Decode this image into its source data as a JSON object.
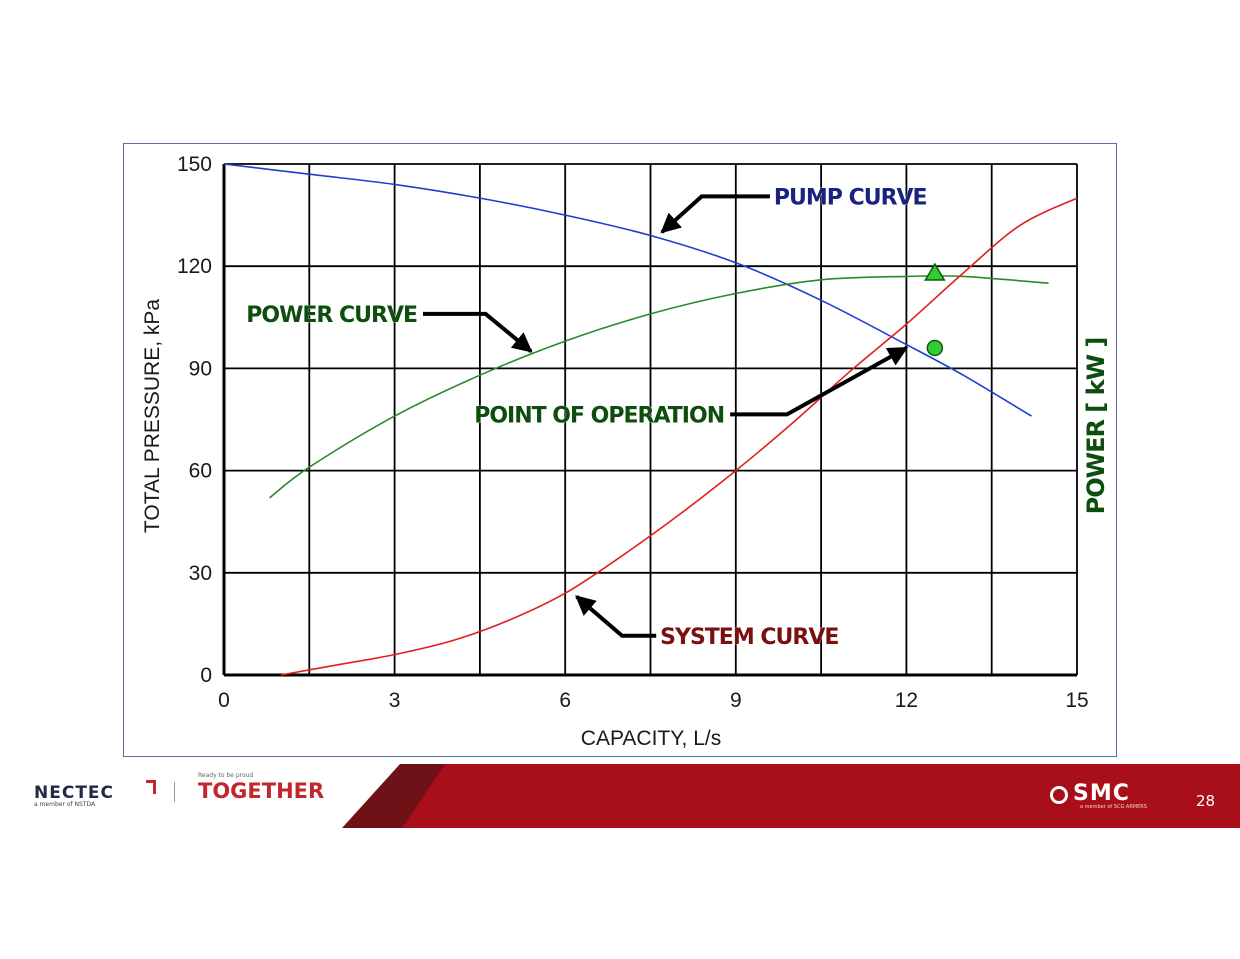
{
  "slide": {
    "page_number": "28"
  },
  "footer": {
    "nectec_logo_text": "NECTEC",
    "nectec_sub_text": "a member of NSTDA",
    "together_tagline": "Ready to be proud",
    "together_text": "TOGETHER",
    "smc_logo_text": "SMC",
    "smc_sub_text": "a member of SCG ARMERS",
    "colors": {
      "band_dark": "#6e1218",
      "band_red": "#a90f18"
    }
  },
  "chart_data": {
    "type": "line",
    "title": "",
    "xlabel": "CAPACITY, L/s",
    "ylabel": "TOTAL PRESSURE, kPa",
    "ylabel_right": "POWER [ kW ]",
    "xlim": [
      0,
      15
    ],
    "ylim": [
      0,
      150
    ],
    "x_ticks": [
      0,
      3,
      6,
      9,
      12,
      15
    ],
    "y_ticks": [
      0,
      30,
      60,
      90,
      120,
      150
    ],
    "x_tick_labels": [
      "0",
      "3",
      "6",
      "9",
      "12",
      "15"
    ],
    "y_tick_labels": [
      "0",
      "30",
      "60",
      "90",
      "120",
      "150"
    ],
    "x_gridlines": [
      0,
      1.5,
      3,
      4.5,
      6,
      7.5,
      9,
      10.5,
      12,
      13.5,
      15
    ],
    "y_gridlines": [
      0,
      30,
      60,
      90,
      120,
      150
    ],
    "grid": true,
    "series": [
      {
        "key": "pump",
        "color": "#1f3fd1",
        "x": [
          0,
          1.5,
          3,
          4.5,
          6,
          7.5,
          9,
          10.5,
          12,
          13,
          14.2
        ],
        "y": [
          150,
          147,
          144,
          140,
          135,
          129,
          121,
          110,
          97,
          88,
          76
        ]
      },
      {
        "key": "power",
        "color": "#2a8a2a",
        "x": [
          0.8,
          1.5,
          3,
          4.5,
          6,
          7.5,
          9,
          10.5,
          12,
          13,
          14.5
        ],
        "y": [
          52,
          61,
          76,
          88,
          98,
          106,
          112,
          116,
          117,
          117,
          115
        ]
      },
      {
        "key": "system",
        "color": "#e02020",
        "x": [
          1,
          2,
          3,
          4,
          5,
          6,
          7,
          8,
          9,
          10,
          11,
          12,
          13,
          14,
          15
        ],
        "y": [
          0,
          3,
          6,
          10,
          16,
          24,
          35,
          47,
          60,
          74,
          89,
          103,
          118,
          132,
          140
        ]
      }
    ],
    "markers": [
      {
        "name": "operating-point",
        "shape": "circle",
        "x": 12.5,
        "y": 96,
        "color": "#33cc33"
      },
      {
        "name": "power-point",
        "shape": "triangle",
        "x": 12.5,
        "y": 118,
        "color": "#33cc33"
      }
    ],
    "annotations": [
      {
        "key": "pump",
        "text": "PUMP CURVE",
        "color": "#1a237e",
        "label_x": 9.6,
        "label_y": 140.5,
        "arrow": [
          [
            9.6,
            140.5
          ],
          [
            8.4,
            140.5
          ],
          [
            7.7,
            130
          ]
        ]
      },
      {
        "key": "power",
        "text": "POWER CURVE",
        "color": "#0d4d0d",
        "label_x": 0.55,
        "label_y": 106,
        "arrow": [
          [
            3.5,
            106
          ],
          [
            4.6,
            106
          ],
          [
            5.4,
            95
          ]
        ]
      },
      {
        "key": "operation",
        "text": "POINT OF OPERATION",
        "color": "#0d4d0d",
        "label_x": 4.2,
        "label_y": 76.5,
        "arrow": [
          [
            8.9,
            76.5
          ],
          [
            9.9,
            76.5
          ],
          [
            12.0,
            96
          ]
        ]
      },
      {
        "key": "system",
        "text": "SYSTEM CURVE",
        "color": "#7a1010",
        "label_x": 7.6,
        "label_y": 11.5,
        "arrow": [
          [
            7.6,
            11.5
          ],
          [
            7.0,
            11.5
          ],
          [
            6.2,
            23
          ]
        ]
      }
    ]
  }
}
